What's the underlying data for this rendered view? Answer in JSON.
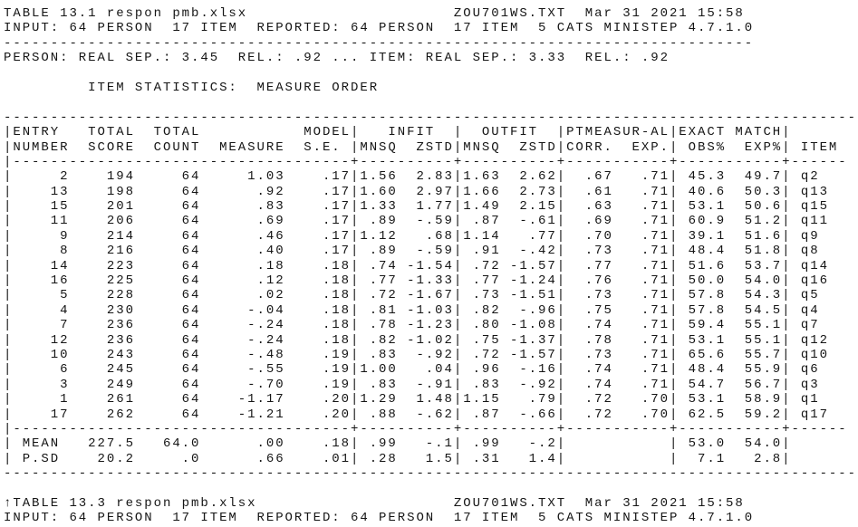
{
  "header": [
    "TABLE 13.1 respon pmb.xlsx                      ZOU701WS.TXT  Mar 31 2021 15:58",
    "INPUT: 64 PERSON  17 ITEM  REPORTED: 64 PERSON  17 ITEM  5 CATS MINISTEP 4.7.1.0",
    "--------------------------------------------------------------------------------",
    "PERSON: REAL SEP.: 3.45  REL.: .92 ... ITEM: REAL SEP.: 3.33  REL.: .92"
  ],
  "subtitle": "         ITEM STATISTICS:  MEASURE ORDER",
  "table": {
    "lines": [
      "-------------------------------------------------------------------------------------------",
      "|ENTRY   TOTAL  TOTAL           MODEL|   INFIT  |  OUTFIT  |PTMEASUR-AL|EXACT MATCH|",
      "|NUMBER  SCORE  COUNT  MEASURE  S.E. |MNSQ  ZSTD|MNSQ  ZSTD|CORR.  EXP.| OBS%  EXP%| ITEM",
      "|------------------------------------+----------+----------+-----------+-----------+------",
      "|     2    194     64     1.03    .17|1.56  2.83|1.63  2.62|  .67   .71| 45.3  49.7| q2",
      "|    13    198     64      .92    .17|1.60  2.97|1.66  2.73|  .61   .71| 40.6  50.3| q13",
      "|    15    201     64      .83    .17|1.33  1.77|1.49  2.15|  .63   .71| 53.1  50.6| q15",
      "|    11    206     64      .69    .17| .89  -.59| .87  -.61|  .69   .71| 60.9  51.2| q11",
      "|     9    214     64      .46    .17|1.12   .68|1.14   .77|  .70   .71| 39.1  51.6| q9",
      "|     8    216     64      .40    .17| .89  -.59| .91  -.42|  .73   .71| 48.4  51.8| q8",
      "|    14    223     64      .18    .18| .74 -1.54| .72 -1.57|  .77   .71| 51.6  53.7| q14",
      "|    16    225     64      .12    .18| .77 -1.33| .77 -1.24|  .76   .71| 50.0  54.0| q16",
      "|     5    228     64      .02    .18| .72 -1.67| .73 -1.51|  .73   .71| 57.8  54.3| q5",
      "|     4    230     64     -.04    .18| .81 -1.03| .82  -.96|  .75   .71| 57.8  54.5| q4",
      "|     7    236     64     -.24    .18| .78 -1.23| .80 -1.08|  .74   .71| 59.4  55.1| q7",
      "|    12    236     64     -.24    .18| .82 -1.02| .75 -1.37|  .78   .71| 53.1  55.1| q12",
      "|    10    243     64     -.48    .19| .83  -.92| .72 -1.57|  .73   .71| 65.6  55.7| q10",
      "|     6    245     64     -.55    .19|1.00   .04| .96  -.16|  .74   .71| 48.4  55.9| q6",
      "|     3    249     64     -.70    .19| .83  -.91| .83  -.92|  .74   .71| 54.7  56.7| q3",
      "|     1    261     64    -1.17    .20|1.29  1.48|1.15   .79|  .72   .70| 53.1  58.9| q1",
      "|    17    262     64    -1.21    .20| .88  -.62| .87  -.66|  .72   .70| 62.5  59.2| q17",
      "|------------------------------------+----------+----------+-----------+-----------+------",
      "| MEAN   227.5   64.0      .00    .18| .99   -.1| .99   -.2|           | 53.0  54.0|",
      "| P.SD    20.2     .0      .66    .01| .28   1.5| .31   1.4|           |  7.1   2.8|",
      "-------------------------------------------------------------------------------------------"
    ]
  },
  "footer": [
    "↑TABLE 13.3 respon pmb.xlsx                     ZOU701WS.TXT  Mar 31 2021 15:58",
    "INPUT: 64 PERSON  17 ITEM  REPORTED: 64 PERSON  17 ITEM  5 CATS MINISTEP 4.7.1.0"
  ]
}
